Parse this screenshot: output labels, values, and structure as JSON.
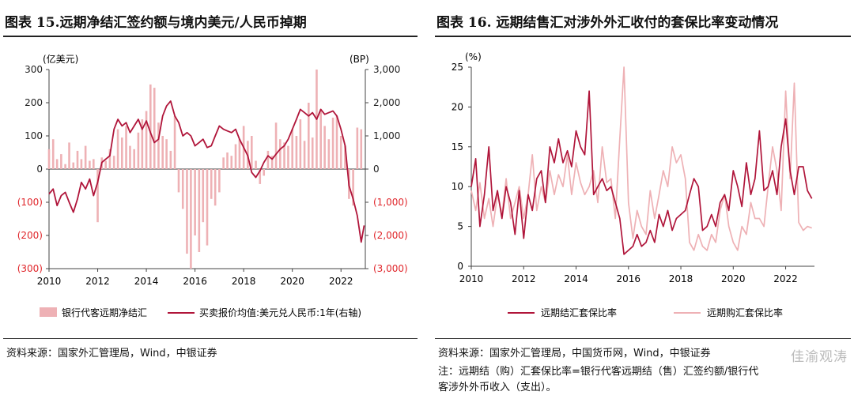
{
  "panels": {
    "left": {
      "title": "图表 15.远期净结汇签约额与境内美元/人民币掉期",
      "source": "资料来源：国家外汇管理局，Wind，中银证券"
    },
    "right": {
      "title": "图表 16. 远期结售汇对涉外外汇收付的套保比率变动情况",
      "source": "资料来源：国家外汇管理局，中国货币网，Wind，中银证券",
      "note_lines": [
        "注：远期结（购）汇套保比率=银行代客远期结（售）汇签约额/银行代",
        "客涉外外币收入（支出）。"
      ]
    }
  },
  "watermark": "佳渝观涛",
  "colors": {
    "dark_red": "#b0153a",
    "light_pink": "#eeb1b5",
    "axis_red": "#e0262b"
  },
  "chart_data": [
    {
      "type": "bar",
      "title": "远期净结汇签约额与境内美元/人民币掉期",
      "left_axis_unit": "(亿美元)",
      "right_axis_unit": "(BP)",
      "ylim_left": [
        -300,
        300
      ],
      "ylim_right": [
        -3000,
        3000
      ],
      "left_ticks": [
        "300",
        "200",
        "100",
        "0",
        "(100)",
        "(200)",
        "(300)"
      ],
      "right_ticks": [
        "3,000",
        "2,000",
        "1,000",
        "0",
        "(1,000)",
        "(2,000)",
        "(3,000)"
      ],
      "x_ticks": [
        "2010",
        "2012",
        "2014",
        "2016",
        "2018",
        "2020",
        "2022"
      ],
      "x_range": [
        2010,
        2023.0
      ],
      "legend": [
        "银行代客远期净结汇",
        "买卖报价均值:美元兑人民币:1年(右轴)"
      ],
      "bar_series": {
        "name": "银行代客远期净结汇",
        "x": [
          2010.0,
          2010.17,
          2010.33,
          2010.5,
          2010.67,
          2010.83,
          2011.0,
          2011.17,
          2011.33,
          2011.5,
          2011.67,
          2011.83,
          2012.0,
          2012.17,
          2012.33,
          2012.5,
          2012.67,
          2012.83,
          2013.0,
          2013.17,
          2013.33,
          2013.5,
          2013.67,
          2013.83,
          2014.0,
          2014.17,
          2014.33,
          2014.5,
          2014.67,
          2014.83,
          2015.0,
          2015.17,
          2015.33,
          2015.5,
          2015.67,
          2015.83,
          2016.0,
          2016.17,
          2016.33,
          2016.5,
          2016.67,
          2016.83,
          2017.0,
          2017.17,
          2017.33,
          2017.5,
          2017.67,
          2017.83,
          2018.0,
          2018.17,
          2018.33,
          2018.5,
          2018.67,
          2018.83,
          2019.0,
          2019.17,
          2019.33,
          2019.5,
          2019.67,
          2019.83,
          2020.0,
          2020.17,
          2020.33,
          2020.5,
          2020.67,
          2020.83,
          2021.0,
          2021.17,
          2021.33,
          2021.5,
          2021.67,
          2021.83,
          2022.0,
          2022.17,
          2022.33,
          2022.5,
          2022.67,
          2022.83
        ],
        "values": [
          60,
          90,
          30,
          45,
          15,
          80,
          20,
          55,
          30,
          70,
          25,
          30,
          -160,
          35,
          25,
          60,
          40,
          120,
          95,
          130,
          70,
          60,
          110,
          150,
          175,
          255,
          245,
          140,
          100,
          90,
          55,
          160,
          -70,
          -120,
          -255,
          -300,
          -200,
          -250,
          -160,
          -230,
          -90,
          -110,
          -70,
          35,
          50,
          40,
          75,
          90,
          130,
          85,
          100,
          25,
          -45,
          -20,
          55,
          40,
          140,
          90,
          80,
          70,
          120,
          100,
          150,
          85,
          200,
          95,
          300,
          180,
          130,
          90,
          155,
          160,
          100,
          70,
          -90,
          -110,
          125,
          120
        ]
      },
      "line_series": {
        "name": "买卖报价均值:美元兑人民币:1年(右轴)",
        "x": [
          2010.0,
          2010.17,
          2010.33,
          2010.5,
          2010.67,
          2010.83,
          2011.0,
          2011.17,
          2011.33,
          2011.5,
          2011.67,
          2011.83,
          2012.0,
          2012.17,
          2012.33,
          2012.5,
          2012.67,
          2012.83,
          2013.0,
          2013.17,
          2013.33,
          2013.5,
          2013.67,
          2013.83,
          2014.0,
          2014.17,
          2014.33,
          2014.5,
          2014.67,
          2014.83,
          2015.0,
          2015.17,
          2015.33,
          2015.5,
          2015.67,
          2015.83,
          2016.0,
          2016.17,
          2016.33,
          2016.5,
          2016.67,
          2016.83,
          2017.0,
          2017.17,
          2017.33,
          2017.5,
          2017.67,
          2017.83,
          2018.0,
          2018.17,
          2018.33,
          2018.5,
          2018.67,
          2018.83,
          2019.0,
          2019.17,
          2019.33,
          2019.5,
          2019.67,
          2019.83,
          2020.0,
          2020.17,
          2020.33,
          2020.5,
          2020.67,
          2020.83,
          2021.0,
          2021.17,
          2021.33,
          2021.5,
          2021.67,
          2021.83,
          2022.0,
          2022.17,
          2022.33,
          2022.5,
          2022.67,
          2022.83,
          2022.95
        ],
        "values": [
          -750,
          -600,
          -1100,
          -800,
          -700,
          -1000,
          -1300,
          -900,
          -400,
          -600,
          -300,
          -800,
          -400,
          200,
          300,
          400,
          1200,
          1500,
          1300,
          1400,
          1100,
          1300,
          1500,
          1200,
          1450,
          1100,
          800,
          900,
          1600,
          1900,
          2050,
          1600,
          1400,
          1000,
          1100,
          1000,
          700,
          800,
          900,
          650,
          700,
          1000,
          1300,
          1200,
          1150,
          1100,
          1200,
          900,
          650,
          400,
          -100,
          -250,
          -50,
          200,
          400,
          300,
          450,
          600,
          700,
          900,
          1200,
          1500,
          1800,
          1700,
          1600,
          1700,
          1500,
          1800,
          1650,
          1700,
          1750,
          1600,
          1200,
          700,
          -500,
          -900,
          -1400,
          -2200,
          -1700
        ]
      }
    },
    {
      "type": "line",
      "title": "远期结售汇对涉外外汇收付的套保比率变动情况",
      "y_unit": "(%)",
      "ylim": [
        0,
        25
      ],
      "y_ticks": [
        "25",
        "20",
        "15",
        "10",
        "5",
        "0"
      ],
      "x_ticks": [
        "2010",
        "2012",
        "2014",
        "2016",
        "2018",
        "2020",
        "2022"
      ],
      "x_range": [
        2010,
        2023.1
      ],
      "legend": [
        "远期结汇套保比率",
        "远期购汇套保比率"
      ],
      "series": [
        {
          "name": "远期结汇套保比率",
          "x": [
            2010.0,
            2010.17,
            2010.33,
            2010.5,
            2010.67,
            2010.83,
            2011.0,
            2011.17,
            2011.33,
            2011.5,
            2011.67,
            2011.83,
            2012.0,
            2012.17,
            2012.33,
            2012.5,
            2012.67,
            2012.83,
            2013.0,
            2013.17,
            2013.33,
            2013.5,
            2013.67,
            2013.83,
            2014.0,
            2014.17,
            2014.33,
            2014.5,
            2014.67,
            2014.83,
            2015.0,
            2015.17,
            2015.33,
            2015.5,
            2015.67,
            2015.83,
            2016.0,
            2016.17,
            2016.33,
            2016.5,
            2016.67,
            2016.83,
            2017.0,
            2017.17,
            2017.33,
            2017.5,
            2017.67,
            2017.83,
            2018.0,
            2018.17,
            2018.33,
            2018.5,
            2018.67,
            2018.83,
            2019.0,
            2019.17,
            2019.33,
            2019.5,
            2019.67,
            2019.83,
            2020.0,
            2020.17,
            2020.33,
            2020.5,
            2020.67,
            2020.83,
            2021.0,
            2021.17,
            2021.33,
            2021.5,
            2021.67,
            2021.83,
            2022.0,
            2022.17,
            2022.33,
            2022.5,
            2022.67,
            2022.83,
            2023.0
          ],
          "values": [
            10,
            13.5,
            5,
            9,
            15,
            7,
            9.5,
            6,
            10,
            8,
            4,
            9.5,
            3.5,
            9,
            7,
            11,
            12,
            8,
            15,
            13,
            16,
            13,
            14.5,
            12.5,
            17,
            15,
            14,
            22,
            9,
            10,
            11,
            9.5,
            10,
            8,
            6,
            1.5,
            2,
            2.5,
            4,
            2.5,
            3,
            4.5,
            3,
            6.5,
            5,
            7,
            4.5,
            6,
            6.5,
            7,
            9,
            11,
            10,
            4.5,
            5,
            6.5,
            5,
            8,
            9,
            7,
            12,
            10,
            7.5,
            13,
            9,
            11,
            17,
            9.5,
            10,
            12,
            9,
            15,
            18.5,
            12,
            9,
            12.5,
            12.5,
            9.5,
            8.5
          ]
        },
        {
          "name": "远期购汇套保比率",
          "x": [
            2010.0,
            2010.17,
            2010.33,
            2010.5,
            2010.67,
            2010.83,
            2011.0,
            2011.17,
            2011.33,
            2011.5,
            2011.67,
            2011.83,
            2012.0,
            2012.17,
            2012.33,
            2012.5,
            2012.67,
            2012.83,
            2013.0,
            2013.17,
            2013.33,
            2013.5,
            2013.67,
            2013.83,
            2014.0,
            2014.17,
            2014.33,
            2014.5,
            2014.67,
            2014.83,
            2015.0,
            2015.17,
            2015.33,
            2015.5,
            2015.67,
            2015.83,
            2016.0,
            2016.17,
            2016.33,
            2016.5,
            2016.67,
            2016.83,
            2017.0,
            2017.17,
            2017.33,
            2017.5,
            2017.67,
            2017.83,
            2018.0,
            2018.17,
            2018.33,
            2018.5,
            2018.67,
            2018.83,
            2019.0,
            2019.17,
            2019.33,
            2019.5,
            2019.67,
            2019.83,
            2020.0,
            2020.17,
            2020.33,
            2020.5,
            2020.67,
            2020.83,
            2021.0,
            2021.17,
            2021.33,
            2021.5,
            2021.67,
            2021.83,
            2022.0,
            2022.17,
            2022.33,
            2022.5,
            2022.67,
            2022.83,
            2023.0
          ],
          "values": [
            9.5,
            7,
            10.5,
            6,
            8.5,
            5,
            9,
            6.5,
            11,
            6,
            8,
            10,
            6,
            9,
            14,
            7,
            10,
            8,
            12,
            9,
            11.5,
            10,
            14,
            9,
            13,
            10.5,
            9,
            10,
            12,
            8,
            15,
            10.5,
            11,
            6,
            16,
            25,
            8,
            3.5,
            7,
            5,
            4,
            9.5,
            6,
            9,
            12,
            10,
            15,
            13,
            14,
            11,
            3,
            2,
            4,
            2.5,
            2,
            4,
            3,
            7,
            9,
            5,
            3,
            2,
            5,
            4,
            8,
            6,
            6,
            5,
            10,
            15,
            12,
            7,
            22,
            11,
            23,
            5.5,
            4.5,
            5,
            4.8
          ]
        }
      ]
    }
  ]
}
